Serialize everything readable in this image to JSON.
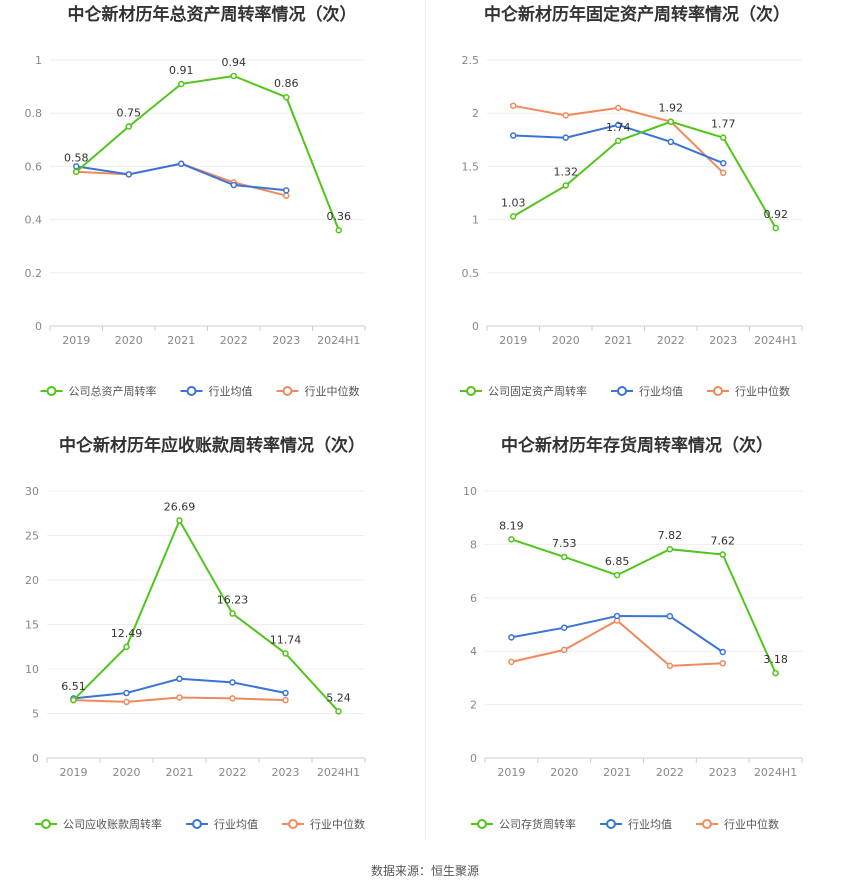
{
  "colors": {
    "company": "#52c41a",
    "avg": "#3a74d8",
    "median": "#f08a5d"
  },
  "source": "数据来源：恒生聚源",
  "chart_data": [
    {
      "type": "line",
      "title": "中仑新材历年总资产周转率情况（次）",
      "categories": [
        "2019",
        "2020",
        "2021",
        "2022",
        "2023",
        "2024H1"
      ],
      "ylim": [
        0,
        1
      ],
      "yticks": [
        "0",
        "0.2",
        "0.4",
        "0.6",
        "0.8",
        "1"
      ],
      "ytick_values": [
        0,
        0.2,
        0.4,
        0.6,
        0.8,
        1
      ],
      "series": [
        {
          "name": "公司总资产周转率",
          "values": [
            0.58,
            0.75,
            0.91,
            0.94,
            0.86,
            0.36
          ],
          "labels": [
            "0.58",
            "0.75",
            "0.91",
            "0.94",
            "0.86",
            "0.36"
          ]
        },
        {
          "name": "行业均值",
          "values": [
            0.6,
            0.57,
            0.61,
            0.53,
            0.51,
            null
          ]
        },
        {
          "name": "行业中位数",
          "values": [
            0.58,
            0.57,
            0.61,
            0.54,
            0.49,
            null
          ]
        }
      ]
    },
    {
      "type": "line",
      "title": "中仑新材历年固定资产周转率情况（次）",
      "categories": [
        "2019",
        "2020",
        "2021",
        "2022",
        "2023",
        "2024H1"
      ],
      "ylim": [
        0,
        2.5
      ],
      "yticks": [
        "0",
        "0.5",
        "1",
        "1.5",
        "2",
        "2.5"
      ],
      "ytick_values": [
        0,
        0.5,
        1,
        1.5,
        2,
        2.5
      ],
      "series": [
        {
          "name": "公司固定资产周转率",
          "values": [
            1.03,
            1.32,
            1.74,
            1.92,
            1.77,
            0.92
          ],
          "labels": [
            "1.03",
            "1.32",
            "1.74",
            "1.92",
            "1.77",
            "0.92"
          ]
        },
        {
          "name": "行业均值",
          "values": [
            1.79,
            1.77,
            1.89,
            1.73,
            1.53,
            null
          ]
        },
        {
          "name": "行业中位数",
          "values": [
            2.07,
            1.98,
            2.05,
            1.92,
            1.44,
            null
          ]
        }
      ]
    },
    {
      "type": "line",
      "title": "中仑新材历年应收账款周转率情况（次）",
      "categories": [
        "2019",
        "2020",
        "2021",
        "2022",
        "2023",
        "2024H1"
      ],
      "ylim": [
        0,
        30
      ],
      "yticks": [
        "0",
        "5",
        "10",
        "15",
        "20",
        "25",
        "30"
      ],
      "ytick_values": [
        0,
        5,
        10,
        15,
        20,
        25,
        30
      ],
      "series": [
        {
          "name": "公司应收账款周转率",
          "values": [
            6.51,
            12.49,
            26.69,
            16.23,
            11.74,
            5.24
          ],
          "labels": [
            "6.51",
            "12.49",
            "26.69",
            "16.23",
            "11.74",
            "5.24"
          ]
        },
        {
          "name": "行业均值",
          "values": [
            6.7,
            7.3,
            8.9,
            8.5,
            7.3,
            null
          ]
        },
        {
          "name": "行业中位数",
          "values": [
            6.5,
            6.3,
            6.8,
            6.7,
            6.5,
            null
          ]
        }
      ]
    },
    {
      "type": "line",
      "title": "中仑新材历年存货周转率情况（次）",
      "categories": [
        "2019",
        "2020",
        "2021",
        "2022",
        "2023",
        "2024H1"
      ],
      "ylim": [
        0,
        10
      ],
      "yticks": [
        "0",
        "2",
        "4",
        "6",
        "8",
        "10"
      ],
      "ytick_values": [
        0,
        2,
        4,
        6,
        8,
        10
      ],
      "series": [
        {
          "name": "公司存货周转率",
          "values": [
            8.19,
            7.53,
            6.85,
            7.82,
            7.62,
            3.18
          ],
          "labels": [
            "8.19",
            "7.53",
            "6.85",
            "7.82",
            "7.62",
            "3.18"
          ]
        },
        {
          "name": "行业均值",
          "values": [
            4.52,
            4.88,
            5.32,
            5.31,
            3.97,
            null
          ]
        },
        {
          "name": "行业中位数",
          "values": [
            3.6,
            4.05,
            5.15,
            3.45,
            3.55,
            null
          ]
        }
      ]
    }
  ]
}
